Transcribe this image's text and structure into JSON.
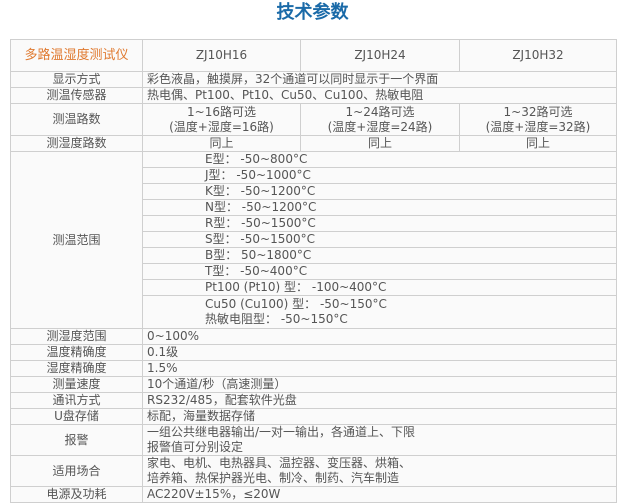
{
  "title": "技术参数",
  "header": {
    "label": "多路温湿度测试仪",
    "models": [
      "ZJ10H16",
      "ZJ10H24",
      "ZJ10H32"
    ]
  },
  "rows": {
    "display": {
      "k": "显示方式",
      "v": "彩色液晶，触摸屏，32个通道可以同时显示于一个界面"
    },
    "sensor": {
      "k": "测温传感器",
      "v": "热电偶、Pt100、Pt10、Cu50、Cu100、热敏电阻"
    },
    "temp_ch": {
      "k": "测温路数",
      "v": [
        "1~16路可选",
        "(温度+湿度=16路)",
        "1~24路可选",
        "(温度+湿度=24路)",
        "1~32路可选",
        "(温度+湿度=32路)"
      ]
    },
    "hum_ch": {
      "k": "测湿度路数",
      "v": [
        "同上",
        "同上",
        "同上"
      ]
    },
    "range": {
      "k": "测温范围",
      "v": [
        "E型： -50~800°C",
        "J型： -50~1000°C",
        "K型： -50~1200°C",
        "N型： -50~1200°C",
        "R型： -50~1500°C",
        "S型： -50~1500°C",
        "B型： 50~1800°C",
        "T型： -50~400°C",
        "Pt100 (Pt10) 型： -100~400°C",
        "Cu50 (Cu100) 型： -50~150°C",
        "热敏电阻型： -50~150°C"
      ]
    },
    "hum_range": {
      "k": "测湿度范围",
      "v": "0~100%"
    },
    "temp_acc": {
      "k": "温度精确度",
      "v": "0.1级"
    },
    "hum_acc": {
      "k": "湿度精确度",
      "v": "1.5%"
    },
    "speed": {
      "k": "测量速度",
      "v": "10个通道/秒（高速测量）"
    },
    "comm": {
      "k": "通讯方式",
      "v": "RS232/485，配套软件光盘"
    },
    "usb": {
      "k": "U盘存储",
      "v": "标配，海量数据存储"
    },
    "alarm": {
      "k": "报警",
      "v": [
        "一组公共继电器输出/一对一输出，各通道上、下限",
        "报警值可分别设定"
      ]
    },
    "usage": {
      "k": "适用场合",
      "v": [
        "家电、电机、电热器具、温控器、变压器、烘箱、",
        "培养箱、热保护器光电、制冷、制药、汽车制造"
      ]
    },
    "power": {
      "k": "电源及功耗",
      "v": "AC220V±15%，≤20W"
    }
  }
}
